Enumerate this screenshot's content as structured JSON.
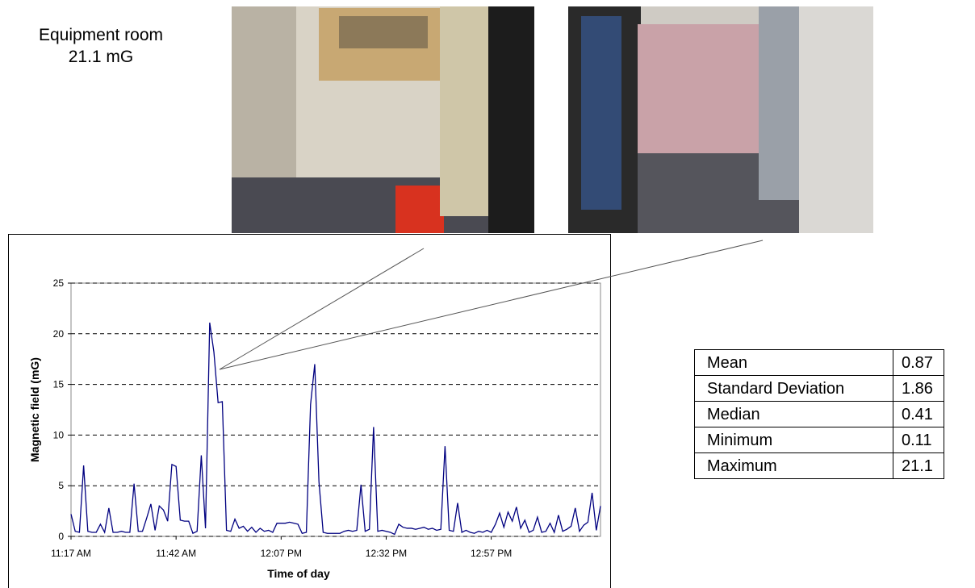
{
  "label": {
    "title": "Equipment room",
    "value": "21.1 mG"
  },
  "stats_table": {
    "rows": [
      [
        "Mean",
        0.87
      ],
      [
        "Standard Deviation",
        1.86
      ],
      [
        "Median",
        0.41
      ],
      [
        "Minimum",
        0.11
      ],
      [
        "Maximum",
        21.1
      ]
    ]
  },
  "chart_data": {
    "type": "line",
    "x_label": "Time of day",
    "y_label": "Magnetic field (mG)",
    "xlim": [
      677,
      803
    ],
    "ylim": [
      0,
      25
    ],
    "xticks": [
      {
        "value": 677,
        "label": "11:17 AM"
      },
      {
        "value": 702,
        "label": "11:42 AM"
      },
      {
        "value": 727,
        "label": "12:07 PM"
      },
      {
        "value": 752,
        "label": "12:32 PM"
      },
      {
        "value": 777,
        "label": "12:57 PM"
      }
    ],
    "yticks": [
      0,
      5,
      10,
      15,
      20,
      25
    ],
    "grid": true,
    "x": [
      677,
      678,
      679,
      680,
      681,
      682,
      683,
      684,
      685,
      686,
      687,
      688,
      689,
      690,
      691,
      692,
      693,
      694,
      695,
      696,
      697,
      698,
      699,
      700,
      701,
      702,
      703,
      704,
      705,
      706,
      707,
      708,
      709,
      710,
      711,
      712,
      713,
      714,
      715,
      716,
      717,
      718,
      719,
      720,
      721,
      722,
      723,
      724,
      725,
      726,
      727,
      728,
      729,
      730,
      731,
      732,
      733,
      734,
      735,
      736,
      737,
      738,
      739,
      740,
      741,
      742,
      743,
      744,
      745,
      746,
      747,
      748,
      749,
      750,
      751,
      752,
      753,
      754,
      755,
      756,
      757,
      758,
      759,
      760,
      761,
      762,
      763,
      764,
      765,
      766,
      767,
      768,
      769,
      770,
      771,
      772,
      773,
      774,
      775,
      776,
      777,
      778,
      779,
      780,
      781,
      782,
      783,
      784,
      785,
      786,
      787,
      788,
      789,
      790,
      791,
      792,
      793,
      794,
      795,
      796,
      797,
      798,
      799,
      800,
      801,
      802,
      803
    ],
    "series": [
      {
        "color": "#000080",
        "values": [
          2.2,
          0.5,
          0.4,
          7.0,
          0.5,
          0.4,
          0.4,
          1.2,
          0.4,
          2.8,
          0.4,
          0.4,
          0.5,
          0.4,
          0.4,
          5.2,
          0.5,
          0.5,
          1.8,
          3.2,
          0.6,
          3.0,
          2.6,
          1.5,
          7.1,
          6.9,
          1.6,
          1.5,
          1.5,
          0.3,
          0.5,
          8.0,
          0.8,
          21.1,
          18.2,
          13.2,
          13.3,
          0.6,
          0.5,
          1.7,
          0.8,
          1.0,
          0.5,
          0.9,
          0.4,
          0.8,
          0.5,
          0.6,
          0.4,
          1.3,
          1.3,
          1.3,
          1.4,
          1.3,
          1.2,
          0.3,
          0.4,
          13.0,
          17.0,
          5.4,
          0.4,
          0.3,
          0.3,
          0.3,
          0.3,
          0.5,
          0.6,
          0.5,
          0.6,
          5.1,
          0.5,
          0.7,
          10.8,
          0.5,
          0.6,
          0.5,
          0.4,
          0.2,
          1.2,
          0.9,
          0.8,
          0.8,
          0.7,
          0.8,
          0.9,
          0.7,
          0.8,
          0.6,
          0.7,
          8.9,
          0.6,
          0.5,
          3.3,
          0.4,
          0.6,
          0.4,
          0.3,
          0.5,
          0.4,
          0.6,
          0.4,
          1.2,
          2.3,
          0.9,
          2.4,
          1.5,
          2.9,
          0.8,
          1.6,
          0.4,
          0.6,
          1.9,
          0.4,
          0.5,
          1.3,
          0.4,
          2.1,
          0.5,
          0.7,
          1.0,
          2.8,
          0.5,
          1.1,
          1.4,
          4.3,
          0.6,
          3.0
        ]
      }
    ]
  }
}
